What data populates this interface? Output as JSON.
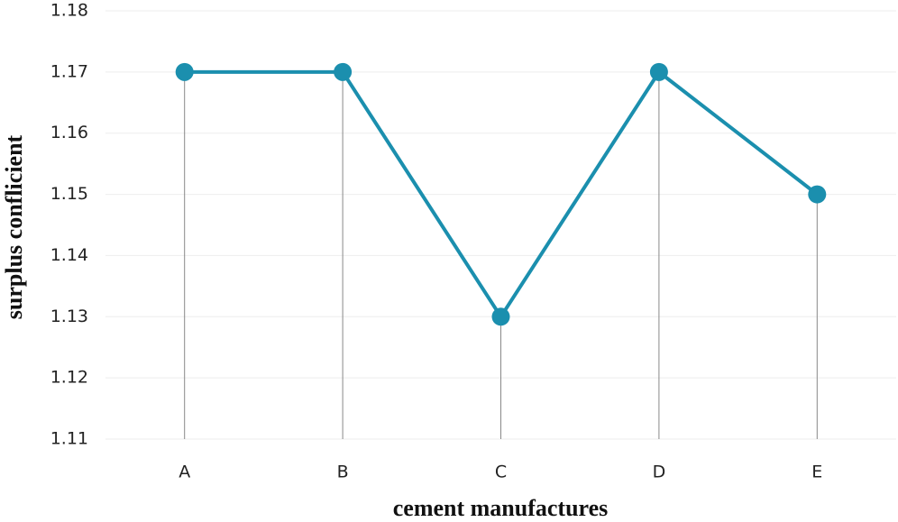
{
  "chart_data": {
    "type": "line",
    "categories": [
      "A",
      "B",
      "C",
      "D",
      "E"
    ],
    "values": [
      1.17,
      1.17,
      1.13,
      1.17,
      1.15
    ],
    "color": "#1b8fae",
    "ylim": [
      1.11,
      1.18
    ],
    "yticks": [
      1.11,
      1.12,
      1.13,
      1.14,
      1.15,
      1.16,
      1.17,
      1.18
    ],
    "grid": true,
    "drop_lines": true,
    "x_label": "cement manufactures",
    "y_label": "surplus conflicient"
  }
}
